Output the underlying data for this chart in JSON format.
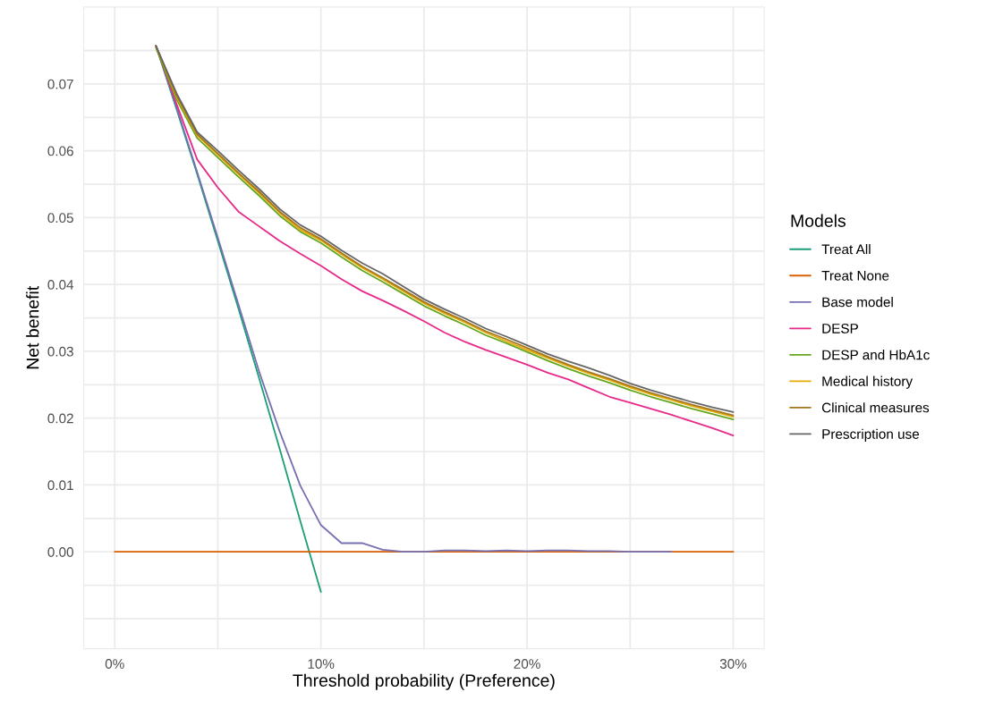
{
  "chart_data": {
    "type": "line",
    "xlabel": "Threshold probability (Preference)",
    "ylabel": "Net benefit",
    "legend_title": "Models",
    "legend": "right",
    "grid": true,
    "line_style": "solid",
    "xlim": [
      -0.015,
      0.315
    ],
    "xticks": [
      {
        "value": 0,
        "label": "0%"
      },
      {
        "value": 0.05,
        "label": null
      },
      {
        "value": 0.1,
        "label": "10%"
      },
      {
        "value": 0.15,
        "label": null
      },
      {
        "value": 0.2,
        "label": "20%"
      },
      {
        "value": 0.25,
        "label": null
      },
      {
        "value": 0.3,
        "label": "30%"
      }
    ],
    "ylim": [
      -0.0145,
      0.0815
    ],
    "yticks": [
      {
        "value": -0.01,
        "label": null
      },
      {
        "value": -0.005,
        "label": null
      },
      {
        "value": 0,
        "label": "0.00"
      },
      {
        "value": 0.005,
        "label": null
      },
      {
        "value": 0.01,
        "label": "0.01"
      },
      {
        "value": 0.015,
        "label": null
      },
      {
        "value": 0.02,
        "label": "0.02"
      },
      {
        "value": 0.025,
        "label": null
      },
      {
        "value": 0.03,
        "label": "0.03"
      },
      {
        "value": 0.035,
        "label": null
      },
      {
        "value": 0.04,
        "label": "0.04"
      },
      {
        "value": 0.045,
        "label": null
      },
      {
        "value": 0.05,
        "label": "0.05"
      },
      {
        "value": 0.055,
        "label": null
      },
      {
        "value": 0.06,
        "label": "0.06"
      },
      {
        "value": 0.065,
        "label": null
      },
      {
        "value": 0.07,
        "label": "0.07"
      },
      {
        "value": 0.075,
        "label": null
      }
    ],
    "series": [
      {
        "name": "Treat All",
        "color": "#1b9e77",
        "x": [
          0.02,
          0.03,
          0.04,
          0.05,
          0.06,
          0.07,
          0.08,
          0.09,
          0.1
        ],
        "values": [
          0.0757,
          0.0662,
          0.0565,
          0.0465,
          0.0364,
          0.026,
          0.0154,
          0.0046,
          -0.006
        ]
      },
      {
        "name": "Treat None",
        "color": "#d95f02",
        "x": [
          0,
          0.3
        ],
        "values": [
          0,
          0
        ]
      },
      {
        "name": "Base model",
        "color": "#7570b3",
        "x": [
          0.02,
          0.03,
          0.04,
          0.05,
          0.06,
          0.07,
          0.08,
          0.09,
          0.1,
          0.11,
          0.12,
          0.13,
          0.14,
          0.15,
          0.16,
          0.17,
          0.18,
          0.19,
          0.2,
          0.21,
          0.22,
          0.23,
          0.24,
          0.25,
          0.26,
          0.27
        ],
        "values": [
          0.0757,
          0.0665,
          0.0568,
          0.047,
          0.037,
          0.027,
          0.018,
          0.0099,
          0.004,
          0.0013,
          0.0013,
          0.0003,
          0,
          0,
          0.0002,
          0.0002,
          0.0001,
          0.0002,
          0.0001,
          0.0002,
          0.0002,
          0.0001,
          0.0001,
          0,
          0,
          0
        ]
      },
      {
        "name": "DESP",
        "color": "#e7298a",
        "x": [
          0.02,
          0.03,
          0.04,
          0.05,
          0.06,
          0.07,
          0.08,
          0.09,
          0.1,
          0.11,
          0.12,
          0.13,
          0.14,
          0.15,
          0.16,
          0.17,
          0.18,
          0.19,
          0.2,
          0.21,
          0.22,
          0.23,
          0.24,
          0.25,
          0.26,
          0.27,
          0.28,
          0.29,
          0.3
        ],
        "values": [
          0.0757,
          0.067,
          0.0587,
          0.0545,
          0.0509,
          0.0487,
          0.0465,
          0.0446,
          0.0428,
          0.0408,
          0.039,
          0.0376,
          0.0361,
          0.0345,
          0.0328,
          0.0314,
          0.0302,
          0.0291,
          0.028,
          0.0268,
          0.0258,
          0.0245,
          0.0232,
          0.0223,
          0.0214,
          0.0205,
          0.0195,
          0.0185,
          0.0174
        ]
      },
      {
        "name": "DESP and HbA1c",
        "color": "#66a61e",
        "x": [
          0.02,
          0.03,
          0.04,
          0.05,
          0.06,
          0.07,
          0.08,
          0.09,
          0.1,
          0.11,
          0.12,
          0.13,
          0.14,
          0.15,
          0.16,
          0.17,
          0.18,
          0.19,
          0.2,
          0.21,
          0.22,
          0.23,
          0.24,
          0.25,
          0.26,
          0.27,
          0.28,
          0.29,
          0.3
        ],
        "values": [
          0.0754,
          0.0677,
          0.0619,
          0.059,
          0.0561,
          0.0533,
          0.0503,
          0.0479,
          0.0462,
          0.0441,
          0.0421,
          0.0404,
          0.0386,
          0.0368,
          0.0353,
          0.0339,
          0.0324,
          0.0312,
          0.0299,
          0.0286,
          0.0274,
          0.0263,
          0.0253,
          0.0242,
          0.0232,
          0.0223,
          0.0214,
          0.0206,
          0.0198
        ]
      },
      {
        "name": "Medical history",
        "color": "#e6ab02",
        "x": [
          0.02,
          0.03,
          0.04,
          0.05,
          0.06,
          0.07,
          0.08,
          0.09,
          0.1,
          0.11,
          0.12,
          0.13,
          0.14,
          0.15,
          0.16,
          0.17,
          0.18,
          0.19,
          0.2,
          0.21,
          0.22,
          0.23,
          0.24,
          0.25,
          0.26,
          0.27,
          0.28,
          0.29,
          0.3
        ],
        "values": [
          0.0757,
          0.0681,
          0.0623,
          0.0594,
          0.0565,
          0.0537,
          0.0507,
          0.0482,
          0.0466,
          0.0445,
          0.0425,
          0.0408,
          0.039,
          0.0372,
          0.0357,
          0.0343,
          0.0328,
          0.0315,
          0.0302,
          0.029,
          0.0278,
          0.0267,
          0.0257,
          0.0246,
          0.0236,
          0.0227,
          0.0218,
          0.021,
          0.0202
        ]
      },
      {
        "name": "Clinical measures",
        "color": "#a6761d",
        "x": [
          0.02,
          0.03,
          0.04,
          0.05,
          0.06,
          0.07,
          0.08,
          0.09,
          0.1,
          0.11,
          0.12,
          0.13,
          0.14,
          0.15,
          0.16,
          0.17,
          0.18,
          0.19,
          0.2,
          0.21,
          0.22,
          0.23,
          0.24,
          0.25,
          0.26,
          0.27,
          0.28,
          0.29,
          0.3
        ],
        "values": [
          0.0757,
          0.0683,
          0.0625,
          0.0596,
          0.0567,
          0.0539,
          0.0509,
          0.0485,
          0.0468,
          0.0447,
          0.0427,
          0.041,
          0.0392,
          0.0374,
          0.0359,
          0.0345,
          0.033,
          0.0318,
          0.0305,
          0.0292,
          0.028,
          0.0269,
          0.0259,
          0.0248,
          0.0238,
          0.0229,
          0.022,
          0.0212,
          0.0204
        ]
      },
      {
        "name": "Prescription use",
        "color": "#666666",
        "x": [
          0.02,
          0.03,
          0.04,
          0.05,
          0.06,
          0.07,
          0.08,
          0.09,
          0.1,
          0.11,
          0.12,
          0.13,
          0.14,
          0.15,
          0.16,
          0.17,
          0.18,
          0.19,
          0.2,
          0.21,
          0.22,
          0.23,
          0.24,
          0.25,
          0.26,
          0.27,
          0.28,
          0.29,
          0.3
        ],
        "values": [
          0.0757,
          0.0686,
          0.0628,
          0.06,
          0.0571,
          0.0543,
          0.0513,
          0.0489,
          0.0472,
          0.0451,
          0.0432,
          0.0416,
          0.0397,
          0.0378,
          0.0363,
          0.0349,
          0.0334,
          0.0322,
          0.0309,
          0.0296,
          0.0285,
          0.0275,
          0.0264,
          0.0252,
          0.0242,
          0.0233,
          0.0224,
          0.0216,
          0.0209
        ]
      }
    ]
  }
}
